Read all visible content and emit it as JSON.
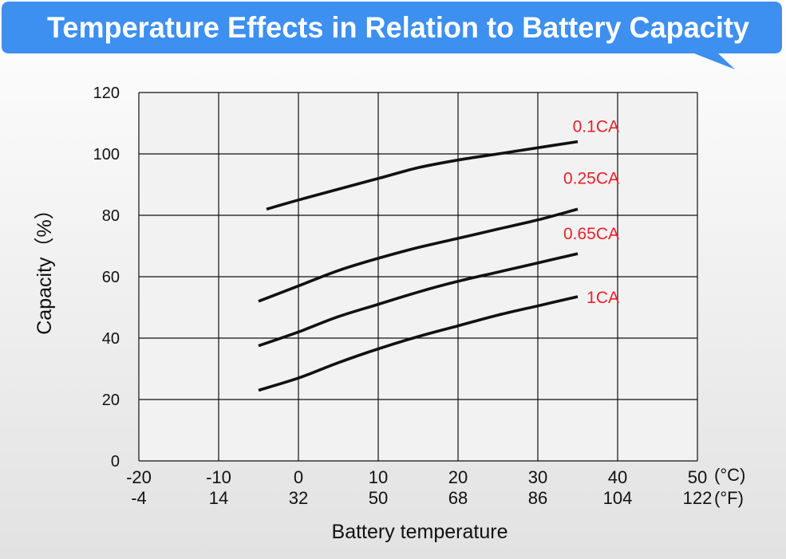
{
  "header": {
    "title": "Temperature Effects in Relation to Battery Capacity",
    "bubble_color": "#3d8ff0",
    "title_color": "#ffffff"
  },
  "chart_data": {
    "type": "line",
    "title": "Temperature Effects in Relation to Battery Capacity",
    "xlabel": "Battery temperature",
    "ylabel": "Capacity（%）",
    "xlim": [
      -20,
      50
    ],
    "ylim": [
      0,
      120
    ],
    "grid": true,
    "x_ticks_c": [
      "-20",
      "-10",
      "0",
      "10",
      "20",
      "30",
      "40",
      "50"
    ],
    "x_ticks_f": [
      "-4",
      "14",
      "32",
      "50",
      "68",
      "86",
      "104",
      "122"
    ],
    "x_unit_c": "(°C)",
    "x_unit_f": "(°F)",
    "y_ticks": [
      "0",
      "20",
      "40",
      "60",
      "80",
      "100",
      "120"
    ],
    "series": [
      {
        "name": "0.1CA",
        "color": "#111111",
        "x": [
          -4,
          0,
          5,
          10,
          15,
          20,
          25,
          30,
          35
        ],
        "y": [
          82,
          85,
          88.5,
          92,
          95.5,
          98,
          100,
          102,
          104
        ]
      },
      {
        "name": "0.25CA",
        "color": "#111111",
        "x": [
          -5,
          0,
          5,
          10,
          15,
          20,
          25,
          30,
          35
        ],
        "y": [
          52,
          57,
          62,
          66,
          69.5,
          72.5,
          75.5,
          78.5,
          82
        ]
      },
      {
        "name": "0.65CA",
        "color": "#111111",
        "x": [
          -5,
          0,
          5,
          10,
          15,
          20,
          25,
          30,
          35
        ],
        "y": [
          37.5,
          42,
          47,
          51,
          55,
          58.5,
          61.5,
          64.5,
          67.5
        ]
      },
      {
        "name": "1CA",
        "color": "#111111",
        "x": [
          -5,
          0,
          5,
          10,
          15,
          20,
          25,
          30,
          35
        ],
        "y": [
          23,
          27,
          32,
          36.5,
          40.5,
          44,
          47.5,
          50.5,
          53.5
        ]
      }
    ],
    "series_label_color": "#e8202a"
  }
}
